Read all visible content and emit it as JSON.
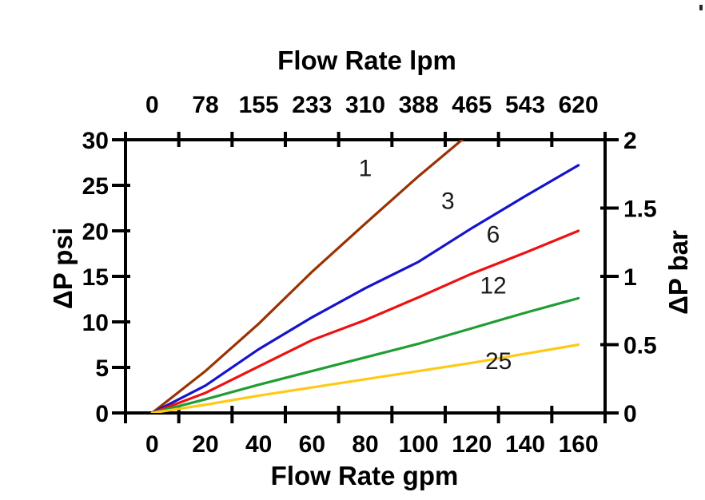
{
  "chart_data": {
    "type": "line",
    "grid": false,
    "legend": "inline curve labels (filter grades)",
    "axes": {
      "top": {
        "title": "Flow Rate lpm",
        "tick_labels": [
          "0",
          "78",
          "155",
          "233",
          "310",
          "388",
          "465",
          "543",
          "620"
        ]
      },
      "bottom": {
        "title": "Flow Rate gpm",
        "tick_labels": [
          "0",
          "20",
          "40",
          "60",
          "80",
          "100",
          "120",
          "140",
          "160"
        ]
      },
      "left": {
        "title": "ΔP psi",
        "tick_labels": [
          "30",
          "25",
          "20",
          "15",
          "10",
          "5",
          "0"
        ],
        "tick_values": [
          30,
          25,
          20,
          15,
          10,
          5,
          0
        ],
        "range": [
          0,
          30
        ]
      },
      "right": {
        "title": "ΔP bar",
        "tick_labels": [
          "2",
          "1.5",
          "1",
          "0.5",
          "0"
        ],
        "tick_values": [
          2,
          1.5,
          1,
          0.5,
          0
        ],
        "range": [
          0,
          2
        ]
      }
    },
    "x_categories_gpm": [
      0,
      20,
      40,
      60,
      80,
      100,
      120,
      140,
      160
    ],
    "series": [
      {
        "label": "1",
        "color": "#993303",
        "gpm": [
          0,
          20,
          40,
          60,
          80,
          100,
          120
        ],
        "psi": [
          0,
          4.6,
          9.8,
          15.5,
          20.8,
          26.0,
          30.9
        ],
        "clipped_at_psi": 30,
        "label_at": {
          "gpm": 80,
          "psi": 26.9
        }
      },
      {
        "label": "3",
        "color": "#1414CC",
        "gpm": [
          0,
          20,
          40,
          60,
          80,
          100,
          120,
          140,
          160
        ],
        "psi": [
          0,
          3.0,
          7.0,
          10.5,
          13.7,
          16.6,
          20.3,
          23.8,
          27.2
        ],
        "label_at": {
          "gpm": 111,
          "psi": 23.3
        }
      },
      {
        "label": "6",
        "color": "#EE1111",
        "gpm": [
          0,
          20,
          40,
          60,
          80,
          100,
          120,
          140,
          160
        ],
        "psi": [
          0,
          2.2,
          5.1,
          8.0,
          10.2,
          12.7,
          15.3,
          17.6,
          20.0
        ],
        "label_at": {
          "gpm": 128,
          "psi": 19.6
        }
      },
      {
        "label": "12",
        "color": "#1E9E32",
        "gpm": [
          0,
          20,
          40,
          60,
          80,
          100,
          120,
          140,
          160
        ],
        "psi": [
          0,
          1.5,
          3.1,
          4.6,
          6.1,
          7.6,
          9.3,
          11.0,
          12.6
        ],
        "label_at": {
          "gpm": 128,
          "psi": 14.0
        }
      },
      {
        "label": "25",
        "color": "#FFC913",
        "gpm": [
          0,
          20,
          40,
          60,
          80,
          100,
          120,
          140,
          160
        ],
        "psi": [
          0,
          0.9,
          1.9,
          2.8,
          3.7,
          4.6,
          5.5,
          6.5,
          7.5
        ],
        "label_at": {
          "gpm": 130,
          "psi": 5.7
        }
      }
    ]
  }
}
